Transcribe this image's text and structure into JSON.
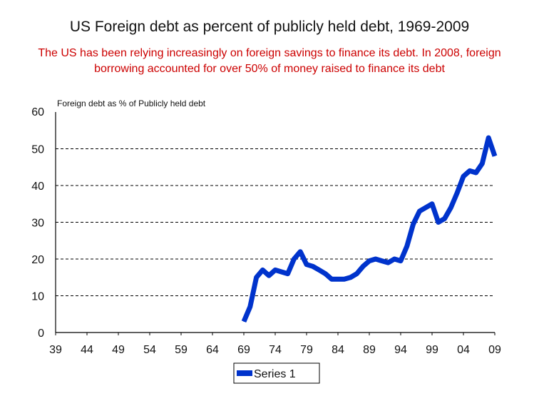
{
  "title": "US Foreign debt as percent of publicly held debt, 1969-2009",
  "subtitle_line1": "The US has been relying increasingly on foreign savings to finance its debt. In 2008, foreign",
  "subtitle_line2": "borrowing accounted for over 50% of money raised to finance its debt",
  "chart_data": {
    "type": "line",
    "title": "US Foreign debt as percent of publicly held debt, 1969-2009",
    "ylabel": "Foreign debt as % of Publicly held debt",
    "xlabel": "",
    "x_ticks": [
      "39",
      "44",
      "49",
      "54",
      "59",
      "64",
      "69",
      "74",
      "79",
      "84",
      "89",
      "94",
      "99",
      "04",
      "09"
    ],
    "x_tick_years": [
      1939,
      1944,
      1949,
      1954,
      1959,
      1964,
      1969,
      1974,
      1979,
      1984,
      1989,
      1994,
      1999,
      2004,
      2009
    ],
    "xlim": [
      1939,
      2009
    ],
    "ylim": [
      0,
      60
    ],
    "y_ticks": [
      0,
      10,
      20,
      30,
      40,
      50,
      60
    ],
    "grid": "horizontal-dashed",
    "legend": {
      "position": "bottom-center",
      "entries": [
        "Series 1"
      ]
    },
    "series": [
      {
        "name": "Series 1",
        "color": "#0033cc",
        "x": [
          1969,
          1970,
          1971,
          1972,
          1973,
          1974,
          1975,
          1976,
          1977,
          1978,
          1979,
          1980,
          1981,
          1982,
          1983,
          1984,
          1985,
          1986,
          1987,
          1988,
          1989,
          1990,
          1991,
          1992,
          1993,
          1994,
          1995,
          1996,
          1997,
          1998,
          1999,
          2000,
          2001,
          2002,
          2003,
          2004,
          2005,
          2006,
          2007,
          2008,
          2009
        ],
        "values": [
          3,
          7,
          15,
          17,
          15.5,
          17,
          16.5,
          16,
          20,
          22,
          18.5,
          18,
          17,
          16,
          14.5,
          14.5,
          14.5,
          15,
          16,
          18,
          19.5,
          20,
          19.5,
          19,
          20,
          19.5,
          23.5,
          29.5,
          33,
          34,
          35,
          30,
          31,
          34,
          38,
          42.5,
          44,
          43.5,
          46,
          53,
          48
        ]
      }
    ]
  }
}
